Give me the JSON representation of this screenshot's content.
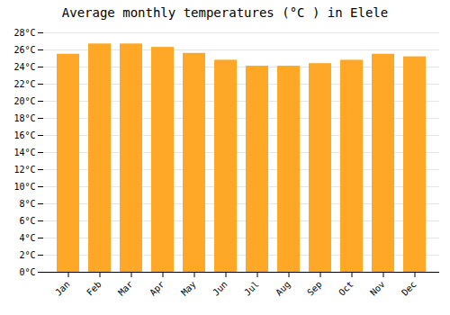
{
  "chart_data": {
    "type": "bar",
    "title": "Average monthly temperatures (°C ) in Elele",
    "categories": [
      "Jan",
      "Feb",
      "Mar",
      "Apr",
      "May",
      "Jun",
      "Jul",
      "Aug",
      "Sep",
      "Oct",
      "Nov",
      "Dec"
    ],
    "values": [
      25.5,
      26.7,
      26.7,
      26.3,
      25.6,
      24.8,
      24.1,
      24.1,
      24.4,
      24.8,
      25.5,
      25.2
    ],
    "color": "#FFA726",
    "ylim": [
      0,
      28
    ],
    "yticks": [
      {
        "value": 0,
        "label": "0°C"
      },
      {
        "value": 2,
        "label": "2°C"
      },
      {
        "value": 4,
        "label": "4°C"
      },
      {
        "value": 6,
        "label": "6°C"
      },
      {
        "value": 8,
        "label": "8°C"
      },
      {
        "value": 10,
        "label": "10°C"
      },
      {
        "value": 12,
        "label": "12°C"
      },
      {
        "value": 14,
        "label": "14°C"
      },
      {
        "value": 16,
        "label": "16°C"
      },
      {
        "value": 18,
        "label": "18°C"
      },
      {
        "value": 20,
        "label": "20°C"
      },
      {
        "value": 22,
        "label": "22°C"
      },
      {
        "value": 24,
        "label": "24°C"
      },
      {
        "value": 26,
        "label": "26°C"
      },
      {
        "value": 28,
        "label": "28°C"
      }
    ],
    "grid": true
  }
}
